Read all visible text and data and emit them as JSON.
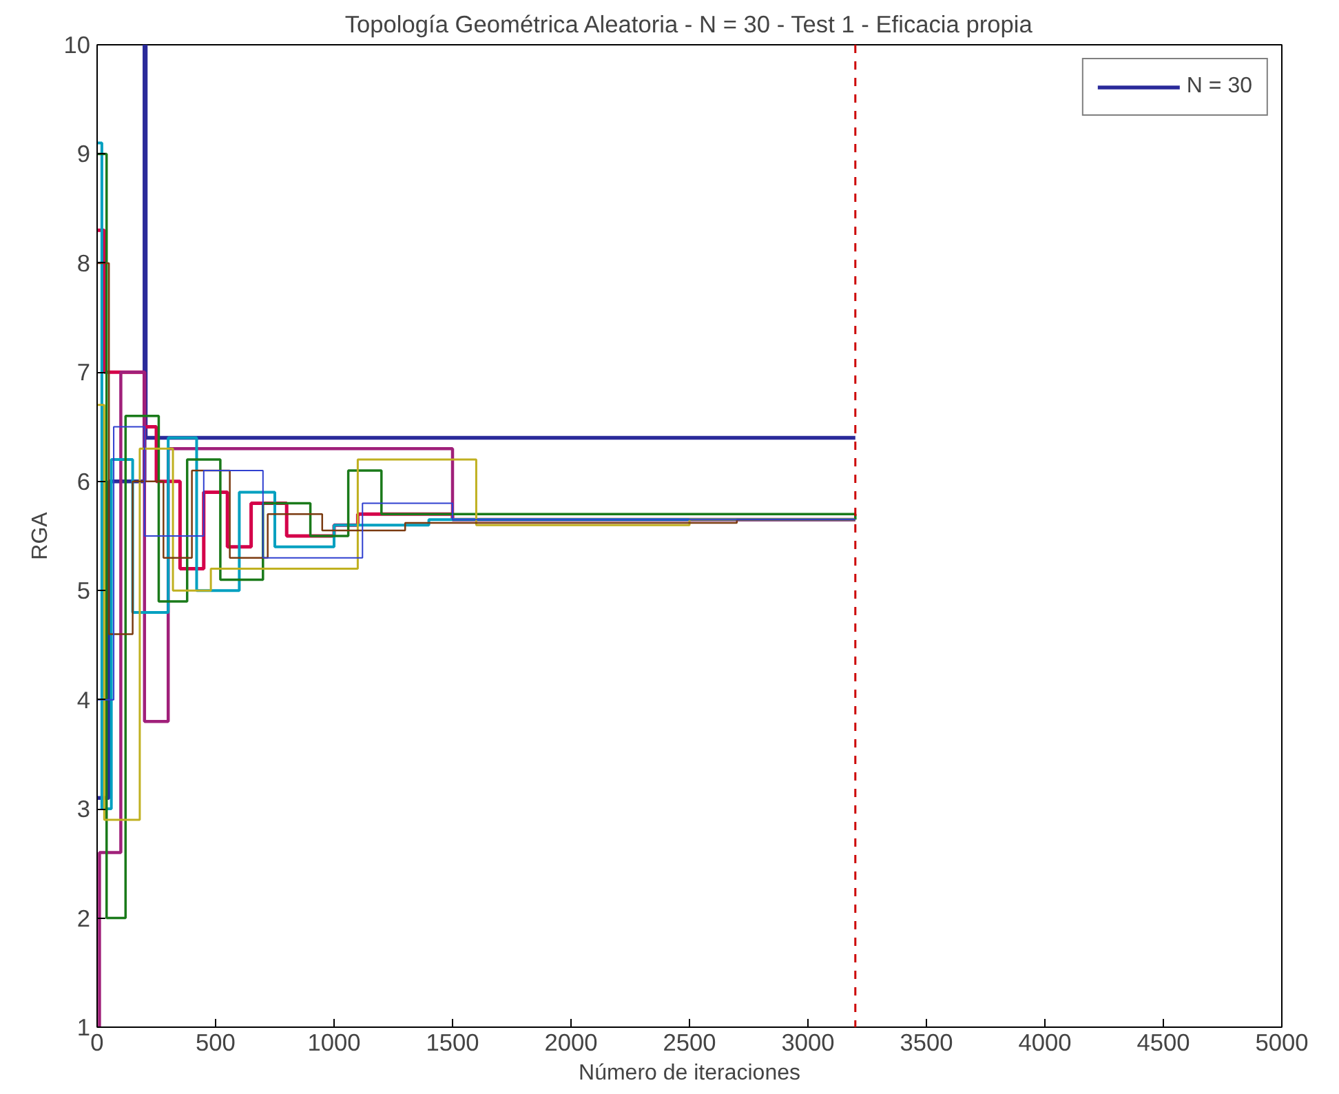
{
  "chart_data": {
    "type": "step",
    "title": "Topología Geométrica Aleatoria - N = 30 - Test 1 - Eficacia propia",
    "xlabel": "Número de iteraciones",
    "ylabel": "RGA",
    "xlim": [
      0,
      5000
    ],
    "ylim": [
      1,
      10
    ],
    "xticks": [
      0,
      500,
      1000,
      1500,
      2000,
      2500,
      3000,
      3500,
      4000,
      4500,
      5000
    ],
    "yticks": [
      1,
      2,
      3,
      4,
      5,
      6,
      7,
      8,
      9,
      10
    ],
    "grid": false,
    "legend": "top right",
    "line_style": "solid",
    "marker": "none",
    "series": [
      {
        "name": "N = 30",
        "color": "#2a2a9a",
        "x": [
          0,
          50,
          200,
          205,
          1050,
          3200
        ],
        "values": [
          3.1,
          6.0,
          10,
          6.4,
          6.4,
          6.4
        ]
      },
      {
        "color": "#d4004a",
        "x": [
          0,
          30,
          200,
          250,
          350,
          450,
          550,
          650,
          800,
          1000,
          1100,
          1500,
          3200
        ],
        "values": [
          8.3,
          7.0,
          6.5,
          6.0,
          5.2,
          5.9,
          5.4,
          5.8,
          5.5,
          5.6,
          5.7,
          5.65,
          5.65
        ]
      },
      {
        "color": "#a0207a",
        "x": [
          0,
          10,
          100,
          200,
          300,
          1500,
          3200
        ],
        "values": [
          1.0,
          2.6,
          7.0,
          3.8,
          6.3,
          5.65,
          5.65
        ]
      },
      {
        "color": "#00a0c0",
        "x": [
          0,
          20,
          60,
          150,
          300,
          420,
          600,
          750,
          1000,
          1400,
          3200
        ],
        "values": [
          9.1,
          3.0,
          6.2,
          4.8,
          6.4,
          5.0,
          5.9,
          5.4,
          5.6,
          5.65,
          5.65
        ]
      },
      {
        "color": "#1a7a1a",
        "x": [
          0,
          40,
          120,
          260,
          380,
          520,
          700,
          900,
          1060,
          1200,
          3200
        ],
        "values": [
          9.0,
          2.0,
          6.6,
          4.9,
          6.2,
          5.1,
          5.8,
          5.5,
          6.1,
          5.7,
          5.65
        ]
      },
      {
        "color": "#c0b020",
        "x": [
          0,
          30,
          180,
          320,
          480,
          1000,
          1100,
          1600,
          2500,
          3200
        ],
        "values": [
          6.7,
          2.9,
          6.3,
          5.0,
          5.2,
          5.2,
          6.2,
          5.6,
          5.65,
          5.65
        ]
      },
      {
        "color": "#7a3a10",
        "x": [
          0,
          50,
          150,
          280,
          400,
          560,
          720,
          950,
          1300,
          2700,
          3200
        ],
        "values": [
          8.0,
          4.6,
          6.0,
          5.3,
          6.1,
          5.3,
          5.7,
          5.55,
          5.62,
          5.65,
          5.65
        ]
      },
      {
        "color": "#3040d0",
        "x": [
          0,
          70,
          200,
          450,
          700,
          1050,
          1120,
          1500,
          3200
        ],
        "values": [
          4.0,
          6.5,
          5.5,
          6.1,
          5.3,
          5.3,
          5.8,
          5.65,
          5.65
        ]
      }
    ],
    "ref_lines": [
      {
        "axis": "x",
        "value": 3200,
        "color": "#cc0000",
        "line_style": "dashed"
      }
    ]
  }
}
